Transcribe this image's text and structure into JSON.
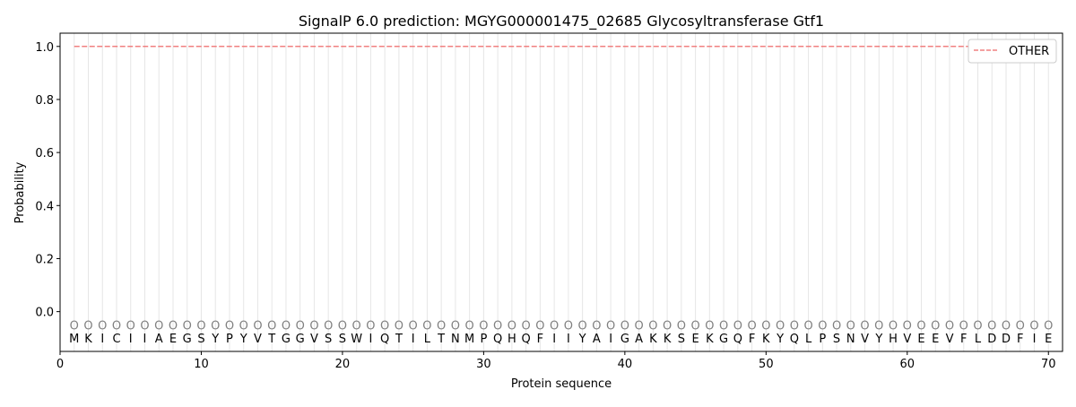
{
  "chart_data": {
    "type": "line",
    "title": "SignalP 6.0 prediction: MGYG000001475_02685 Glycosyltransferase Gtf1",
    "xlabel": "Protein sequence",
    "ylabel": "Probability",
    "xlim": [
      0,
      71
    ],
    "ylim": [
      -0.15,
      1.05
    ],
    "xticks": [
      0,
      10,
      20,
      30,
      40,
      50,
      60,
      70
    ],
    "yticks": [
      0.0,
      0.2,
      0.4,
      0.6,
      0.8,
      1.0
    ],
    "ytick_labels": [
      "0.0",
      "0.2",
      "0.4",
      "0.6",
      "0.8",
      "1.0"
    ],
    "sequence": "MKICIIAEGSYPYVTGGVSSWIQTILTNMPQHQFIIYAIGAKKSEKGQFKYQLPSNVYHVEEVFLDDFIE",
    "region_label": "O",
    "series": [
      {
        "name": "OTHER",
        "color": "#f08080",
        "style": "dashed",
        "x_start": 1,
        "x_end": 70,
        "value": 1.0
      }
    ],
    "legend": {
      "placement": "top-right",
      "entries": [
        "OTHER"
      ]
    },
    "grid": "vertical lines at each residue"
  }
}
